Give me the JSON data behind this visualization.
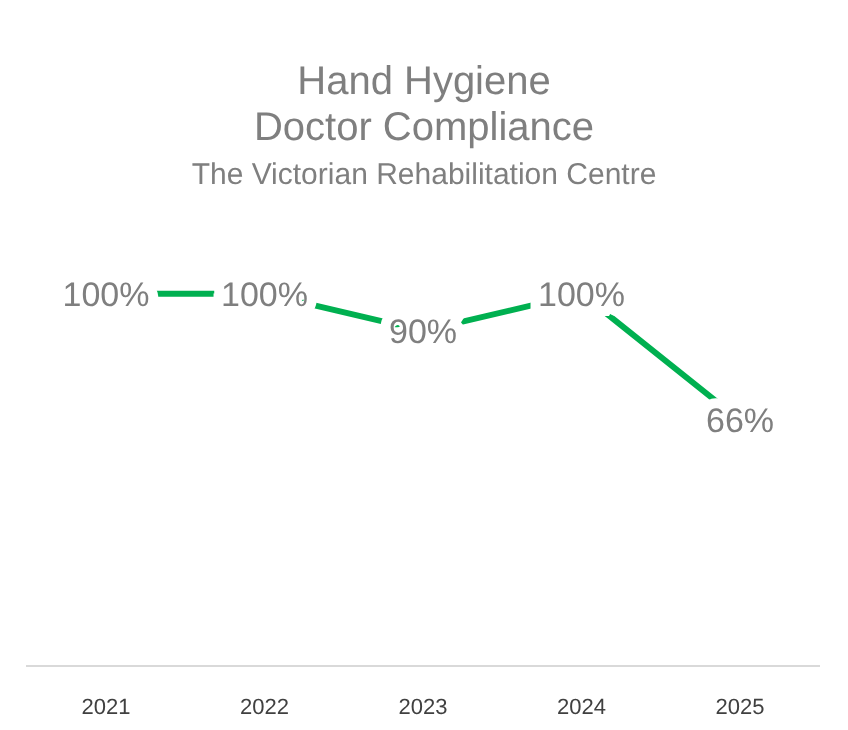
{
  "chart_data": {
    "type": "line",
    "title": "Hand Hygiene\nDoctor Compliance",
    "subtitle": "The Victorian Rehabilitation Centre",
    "categories": [
      "2021",
      "2022",
      "2023",
      "2024",
      "2025"
    ],
    "series": [
      {
        "color": "#00b050",
        "values": [
          100,
          100,
          90,
          100,
          66
        ],
        "value_labels": [
          "100%",
          "100%",
          "90%",
          "100%",
          "66%"
        ]
      }
    ],
    "tick_labels": "x",
    "line_style": "solid"
  }
}
